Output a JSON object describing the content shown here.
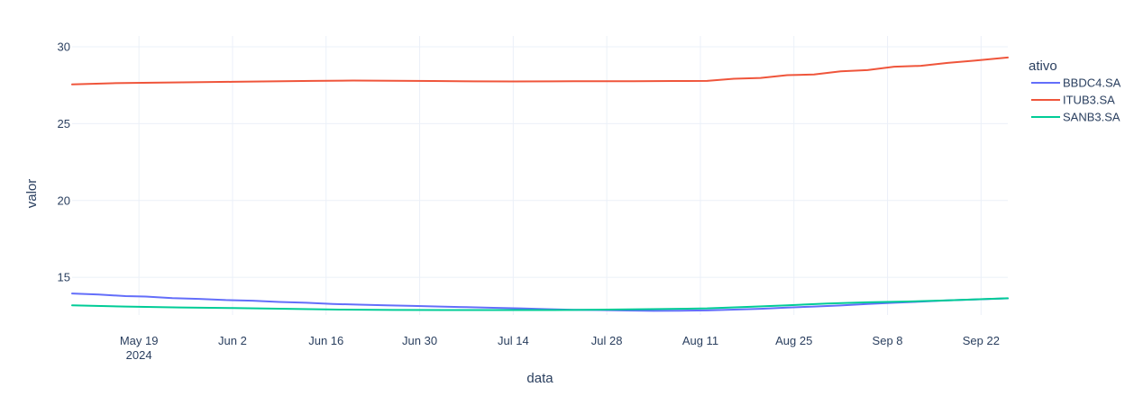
{
  "chart_data": {
    "type": "line",
    "title": "",
    "xlabel": "data",
    "ylabel": "valor",
    "x_axis_type": "date",
    "xlim": [
      "2024-05-09",
      "2024-09-26"
    ],
    "ylim": [
      12.55,
      30.7
    ],
    "x_ticks": [
      {
        "date": "2024-05-19",
        "label": "May 19",
        "sublabel": "2024"
      },
      {
        "date": "2024-06-02",
        "label": "Jun 2",
        "sublabel": ""
      },
      {
        "date": "2024-06-16",
        "label": "Jun 16",
        "sublabel": ""
      },
      {
        "date": "2024-06-30",
        "label": "Jun 30",
        "sublabel": ""
      },
      {
        "date": "2024-07-14",
        "label": "Jul 14",
        "sublabel": ""
      },
      {
        "date": "2024-07-28",
        "label": "Jul 28",
        "sublabel": ""
      },
      {
        "date": "2024-08-11",
        "label": "Aug 11",
        "sublabel": ""
      },
      {
        "date": "2024-08-25",
        "label": "Aug 25",
        "sublabel": ""
      },
      {
        "date": "2024-09-08",
        "label": "Sep 8",
        "sublabel": ""
      },
      {
        "date": "2024-09-22",
        "label": "Sep 22",
        "sublabel": ""
      }
    ],
    "y_ticks": [
      15,
      20,
      25,
      30
    ],
    "grid": true,
    "legend": {
      "title": "ativo",
      "position": "right"
    },
    "series": [
      {
        "name": "BBDC4.SA",
        "color": "#636efa",
        "points": [
          [
            "2024-05-09",
            13.95
          ],
          [
            "2024-05-13",
            13.88
          ],
          [
            "2024-05-17",
            13.78
          ],
          [
            "2024-05-20",
            13.75
          ],
          [
            "2024-05-24",
            13.65
          ],
          [
            "2024-05-28",
            13.6
          ],
          [
            "2024-06-01",
            13.52
          ],
          [
            "2024-06-05",
            13.48
          ],
          [
            "2024-06-09",
            13.4
          ],
          [
            "2024-06-13",
            13.35
          ],
          [
            "2024-06-17",
            13.27
          ],
          [
            "2024-06-21",
            13.22
          ],
          [
            "2024-06-25",
            13.18
          ],
          [
            "2024-06-29",
            13.14
          ],
          [
            "2024-07-03",
            13.1
          ],
          [
            "2024-07-07",
            13.06
          ],
          [
            "2024-07-11",
            13.02
          ],
          [
            "2024-07-15",
            12.98
          ],
          [
            "2024-07-19",
            12.93
          ],
          [
            "2024-07-23",
            12.89
          ],
          [
            "2024-07-27",
            12.87
          ],
          [
            "2024-07-31",
            12.84
          ],
          [
            "2024-08-04",
            12.82
          ],
          [
            "2024-08-08",
            12.83
          ],
          [
            "2024-08-12",
            12.85
          ],
          [
            "2024-08-16",
            12.9
          ],
          [
            "2024-08-20",
            12.95
          ],
          [
            "2024-08-24",
            13.03
          ],
          [
            "2024-08-28",
            13.1
          ],
          [
            "2024-09-01",
            13.17
          ],
          [
            "2024-09-05",
            13.27
          ],
          [
            "2024-09-09",
            13.35
          ],
          [
            "2024-09-13",
            13.42
          ],
          [
            "2024-09-17",
            13.5
          ],
          [
            "2024-09-21",
            13.56
          ],
          [
            "2024-09-26",
            13.63
          ]
        ]
      },
      {
        "name": "ITUB3.SA",
        "color": "#ef553b",
        "points": [
          [
            "2024-05-09",
            27.55
          ],
          [
            "2024-05-15",
            27.63
          ],
          [
            "2024-05-21",
            27.66
          ],
          [
            "2024-05-27",
            27.69
          ],
          [
            "2024-06-02",
            27.72
          ],
          [
            "2024-06-08",
            27.75
          ],
          [
            "2024-06-14",
            27.78
          ],
          [
            "2024-06-20",
            27.8
          ],
          [
            "2024-06-26",
            27.79
          ],
          [
            "2024-07-02",
            27.77
          ],
          [
            "2024-07-08",
            27.75
          ],
          [
            "2024-07-14",
            27.74
          ],
          [
            "2024-07-20",
            27.75
          ],
          [
            "2024-07-26",
            27.76
          ],
          [
            "2024-08-01",
            27.76
          ],
          [
            "2024-08-07",
            27.77
          ],
          [
            "2024-08-12",
            27.78
          ],
          [
            "2024-08-16",
            27.92
          ],
          [
            "2024-08-20",
            27.97
          ],
          [
            "2024-08-24",
            28.15
          ],
          [
            "2024-08-28",
            28.2
          ],
          [
            "2024-09-01",
            28.4
          ],
          [
            "2024-09-05",
            28.48
          ],
          [
            "2024-09-09",
            28.7
          ],
          [
            "2024-09-13",
            28.76
          ],
          [
            "2024-09-17",
            28.95
          ],
          [
            "2024-09-21",
            29.1
          ],
          [
            "2024-09-26",
            29.3
          ]
        ]
      },
      {
        "name": "SANB3.SA",
        "color": "#00cc96",
        "points": [
          [
            "2024-05-09",
            13.18
          ],
          [
            "2024-05-17",
            13.1
          ],
          [
            "2024-05-25",
            13.04
          ],
          [
            "2024-06-02",
            13.0
          ],
          [
            "2024-06-10",
            12.95
          ],
          [
            "2024-06-18",
            12.9
          ],
          [
            "2024-06-26",
            12.88
          ],
          [
            "2024-07-04",
            12.87
          ],
          [
            "2024-07-12",
            12.87
          ],
          [
            "2024-07-20",
            12.87
          ],
          [
            "2024-07-28",
            12.9
          ],
          [
            "2024-08-05",
            12.94
          ],
          [
            "2024-08-12",
            12.98
          ],
          [
            "2024-08-18",
            13.08
          ],
          [
            "2024-08-24",
            13.18
          ],
          [
            "2024-08-30",
            13.3
          ],
          [
            "2024-09-05",
            13.38
          ],
          [
            "2024-09-11",
            13.43
          ],
          [
            "2024-09-17",
            13.5
          ],
          [
            "2024-09-26",
            13.64
          ]
        ]
      }
    ]
  }
}
